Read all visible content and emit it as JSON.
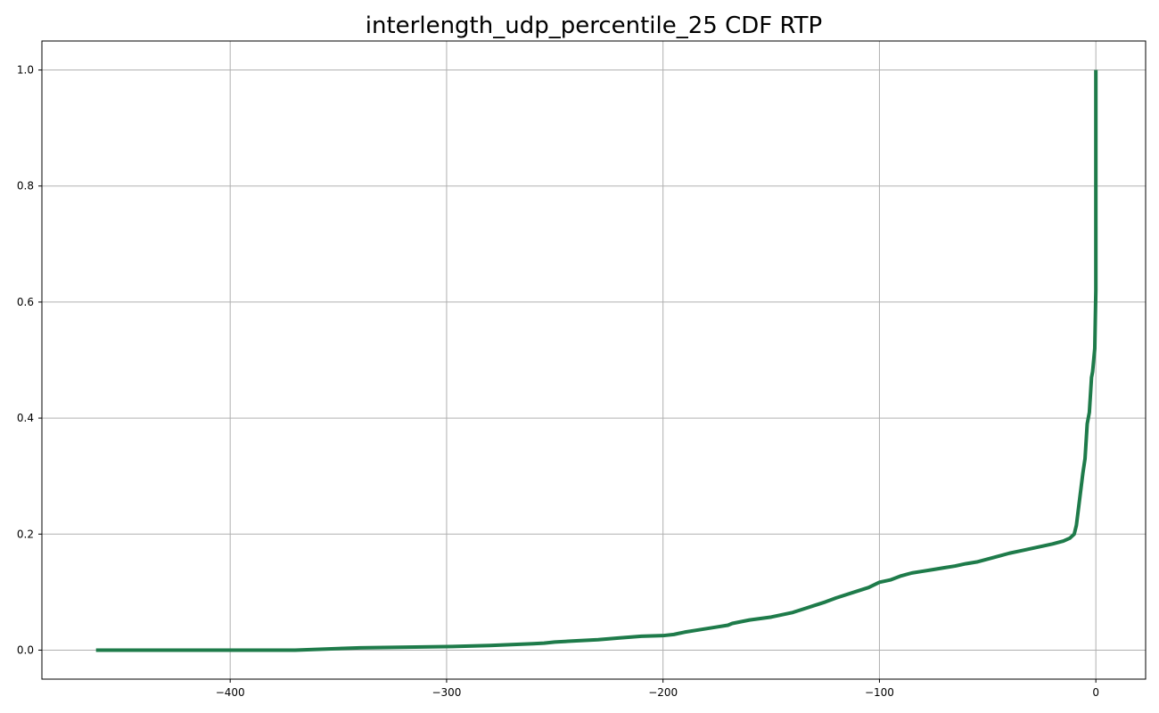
{
  "chart_data": {
    "type": "line",
    "title": "interlength_udp_percentile_25 CDF RTP",
    "xlabel": "",
    "ylabel": "",
    "xlim": [
      -487,
      23
    ],
    "ylim": [
      -0.05,
      1.05
    ],
    "grid": true,
    "x_ticks": [
      -400,
      -300,
      -200,
      -100,
      0
    ],
    "x_tick_labels": [
      "−400",
      "−300",
      "−200",
      "−100",
      "0"
    ],
    "y_ticks": [
      0.0,
      0.2,
      0.4,
      0.6,
      0.8,
      1.0
    ],
    "y_tick_labels": [
      "0.0",
      "0.2",
      "0.4",
      "0.6",
      "0.8",
      "1.0"
    ],
    "series": [
      {
        "color": "#1e7b4a",
        "x": [
          -462,
          -370,
          -340,
          -300,
          -280,
          -260,
          -255,
          -250,
          -240,
          -230,
          -220,
          -210,
          -200,
          -195,
          -190,
          -185,
          -175,
          -170,
          -168,
          -160,
          -150,
          -140,
          -135,
          -130,
          -125,
          -120,
          -110,
          -105,
          -100,
          -95,
          -90,
          -85,
          -80,
          -75,
          -70,
          -65,
          -60,
          -55,
          -50,
          -45,
          -40,
          -35,
          -30,
          -25,
          -20,
          -15,
          -12,
          -10,
          -9,
          -8,
          -7,
          -6,
          -5,
          -4,
          -3,
          -2,
          -1.5,
          -1,
          -0.5,
          0,
          0
        ],
        "y": [
          0.0,
          0.0,
          0.004,
          0.006,
          0.008,
          0.011,
          0.012,
          0.014,
          0.016,
          0.018,
          0.021,
          0.024,
          0.025,
          0.027,
          0.031,
          0.034,
          0.04,
          0.043,
          0.046,
          0.052,
          0.057,
          0.065,
          0.071,
          0.077,
          0.083,
          0.09,
          0.102,
          0.108,
          0.117,
          0.121,
          0.128,
          0.133,
          0.136,
          0.139,
          0.142,
          0.145,
          0.149,
          0.152,
          0.157,
          0.162,
          0.167,
          0.171,
          0.175,
          0.179,
          0.183,
          0.188,
          0.193,
          0.2,
          0.215,
          0.245,
          0.275,
          0.305,
          0.33,
          0.39,
          0.41,
          0.47,
          0.48,
          0.5,
          0.52,
          0.62,
          1.0
        ]
      }
    ]
  }
}
